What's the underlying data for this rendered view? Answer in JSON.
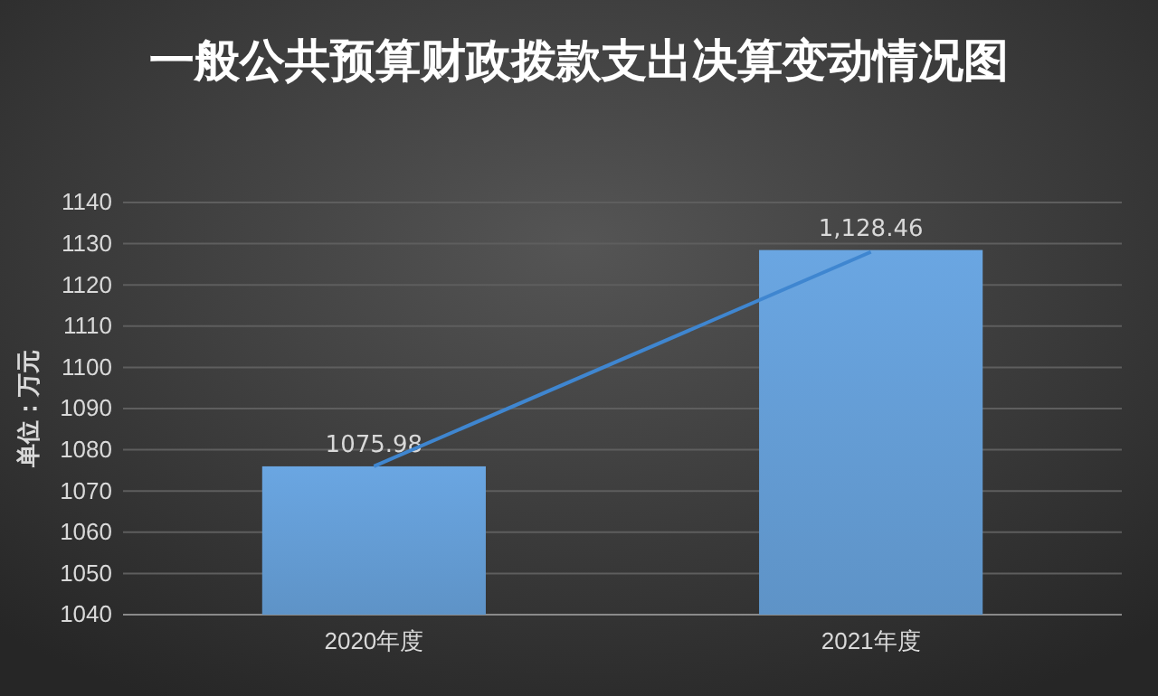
{
  "chart_data": {
    "type": "bar",
    "title": "一般公共预算财政拨款支出决算变动情况图",
    "ylabel": "单位：万元",
    "categories": [
      "2020年度",
      "2021年度"
    ],
    "series": [
      {
        "color": "#6aa6e2",
        "values": [
          1075.98,
          1128.46
        ],
        "value_labels": [
          "1075.98",
          "1,128.46"
        ]
      },
      {
        "type": "line",
        "color": "#3f86d0",
        "values": [
          1076,
          1128
        ]
      }
    ],
    "ylim": [
      1040,
      1140
    ],
    "yticks": [
      1040,
      1050,
      1060,
      1070,
      1080,
      1090,
      1100,
      1110,
      1120,
      1130,
      1140
    ],
    "grid": "y",
    "marker": "none",
    "line_style": "solid"
  }
}
